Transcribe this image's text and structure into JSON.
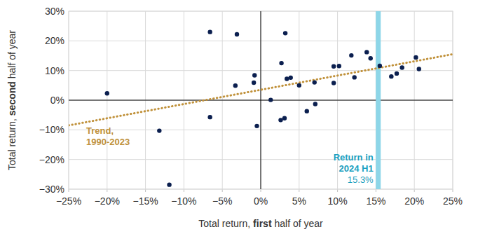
{
  "chart_data": {
    "type": "scatter",
    "xlabel": "Total return, first half of year",
    "xlabel_emphasis": "first",
    "ylabel": "Total return, second half of year",
    "ylabel_emphasis": "second",
    "xlim": [
      -25,
      25
    ],
    "xticks": [
      {
        "value": -25,
        "label": "−25%"
      },
      {
        "value": -20,
        "label": "−20%"
      },
      {
        "value": -15,
        "label": "−15%"
      },
      {
        "value": -10,
        "label": "−10%"
      },
      {
        "value": -5,
        "label": "−5%"
      },
      {
        "value": 0,
        "label": "0%"
      },
      {
        "value": 5,
        "label": "5%"
      },
      {
        "value": 10,
        "label": "10%"
      },
      {
        "value": 15,
        "label": "15%"
      },
      {
        "value": 20,
        "label": "20%"
      },
      {
        "value": 25,
        "label": "25%"
      }
    ],
    "ylim": [
      -30,
      30
    ],
    "yticks": [
      {
        "value": -30,
        "label": "−30%"
      },
      {
        "value": -20,
        "label": "−20%"
      },
      {
        "value": -10,
        "label": "−10%"
      },
      {
        "value": 0,
        "label": "0%"
      },
      {
        "value": 10,
        "label": "10%"
      },
      {
        "value": 20,
        "label": "20%"
      },
      {
        "value": 30,
        "label": "30%"
      }
    ],
    "grid": true,
    "color": "#0b1f4f",
    "marker": "circle",
    "x": [
      -20,
      -13.2,
      -11.9,
      -6.6,
      -6.6,
      -3.1,
      -3.3,
      -0.8,
      -0.9,
      -0.5,
      1.3,
      2.7,
      2.6,
      3.2,
      3.1,
      3.4,
      3.9,
      5,
      6,
      7,
      7.1,
      9.5,
      9.5,
      10.2,
      11.8,
      12.2,
      13.8,
      14.3,
      15.5,
      17,
      17.7,
      18.4,
      20.2,
      20.6
    ],
    "values": [
      2.3,
      -10.3,
      -28.5,
      23,
      -5.7,
      22.2,
      4.9,
      8.4,
      5.9,
      -8.7,
      0.1,
      12.5,
      -6.7,
      22.6,
      -6.1,
      7.2,
      7.6,
      5,
      -3.7,
      6,
      -1.3,
      11.4,
      5.8,
      11.5,
      15.1,
      7.7,
      16.2,
      14.1,
      11.6,
      8,
      9,
      11,
      14.4,
      10.5
    ],
    "trend": {
      "label_lines": [
        "Trend,",
        "1990-2023"
      ],
      "x": [
        -25,
        25
      ],
      "values": [
        -8.5,
        15.5
      ],
      "color": "#c0913a",
      "line_style": "dotted"
    },
    "highlight": {
      "value": 15.3,
      "label_lines": [
        "Return in",
        "2024 H1",
        "15.3%"
      ],
      "color": "#8dd6e8",
      "text_color": "#1ba0c0"
    }
  }
}
